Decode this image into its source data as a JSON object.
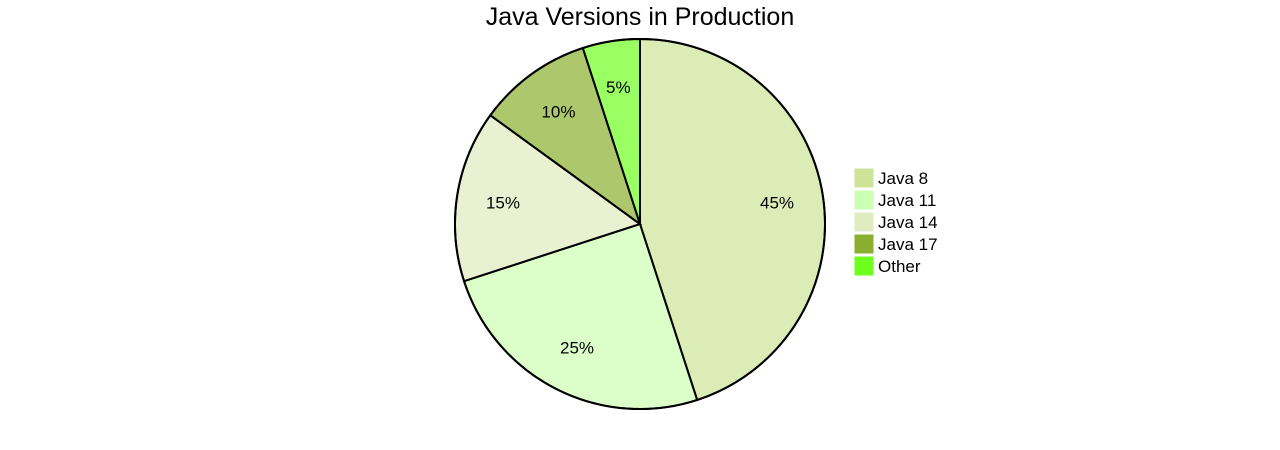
{
  "chart_data": {
    "type": "pie",
    "title": "Java Versions in Production",
    "slices": [
      {
        "label": "Java 8",
        "value": 45,
        "pct_label": "45%",
        "color": "#cde498"
      },
      {
        "label": "Java 11",
        "value": 25,
        "pct_label": "25%",
        "color": "#cdffb2"
      },
      {
        "label": "Java 14",
        "value": 15,
        "pct_label": "15%",
        "color": "#e0ebbf"
      },
      {
        "label": "Java 17",
        "value": 10,
        "pct_label": "10%",
        "color": "#8aaf2f"
      },
      {
        "label": "Other",
        "value": 5,
        "pct_label": "5%",
        "color": "#6eff1f"
      }
    ],
    "legend_position": "right"
  }
}
